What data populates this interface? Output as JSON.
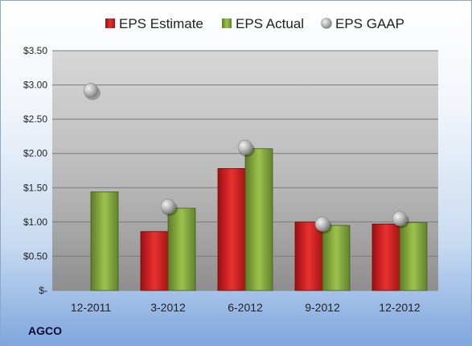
{
  "chart_data": {
    "type": "bar",
    "categories": [
      "12-2011",
      "3-2012",
      "6-2012",
      "9-2012",
      "12-2012"
    ],
    "series": [
      {
        "name": "EPS Estimate",
        "values": [
          null,
          0.86,
          1.78,
          1.0,
          0.97
        ],
        "color": "#cc1f1f"
      },
      {
        "name": "EPS Actual",
        "values": [
          1.44,
          1.2,
          2.07,
          0.95,
          0.99
        ],
        "color": "#7fa33a"
      },
      {
        "name": "EPS GAAP",
        "values": [
          2.92,
          1.23,
          2.09,
          0.97,
          1.05
        ],
        "color": "#a6a6a6",
        "marker": "circle"
      }
    ],
    "ylim": [
      0,
      3.5
    ],
    "yticks": [
      "$-",
      "$0.50",
      "$1.00",
      "$1.50",
      "$2.00",
      "$2.50",
      "$3.00",
      "$3.50"
    ],
    "grid": true,
    "legend": "top",
    "title": "",
    "xlabel": "",
    "ylabel": ""
  },
  "company": "AGCO"
}
